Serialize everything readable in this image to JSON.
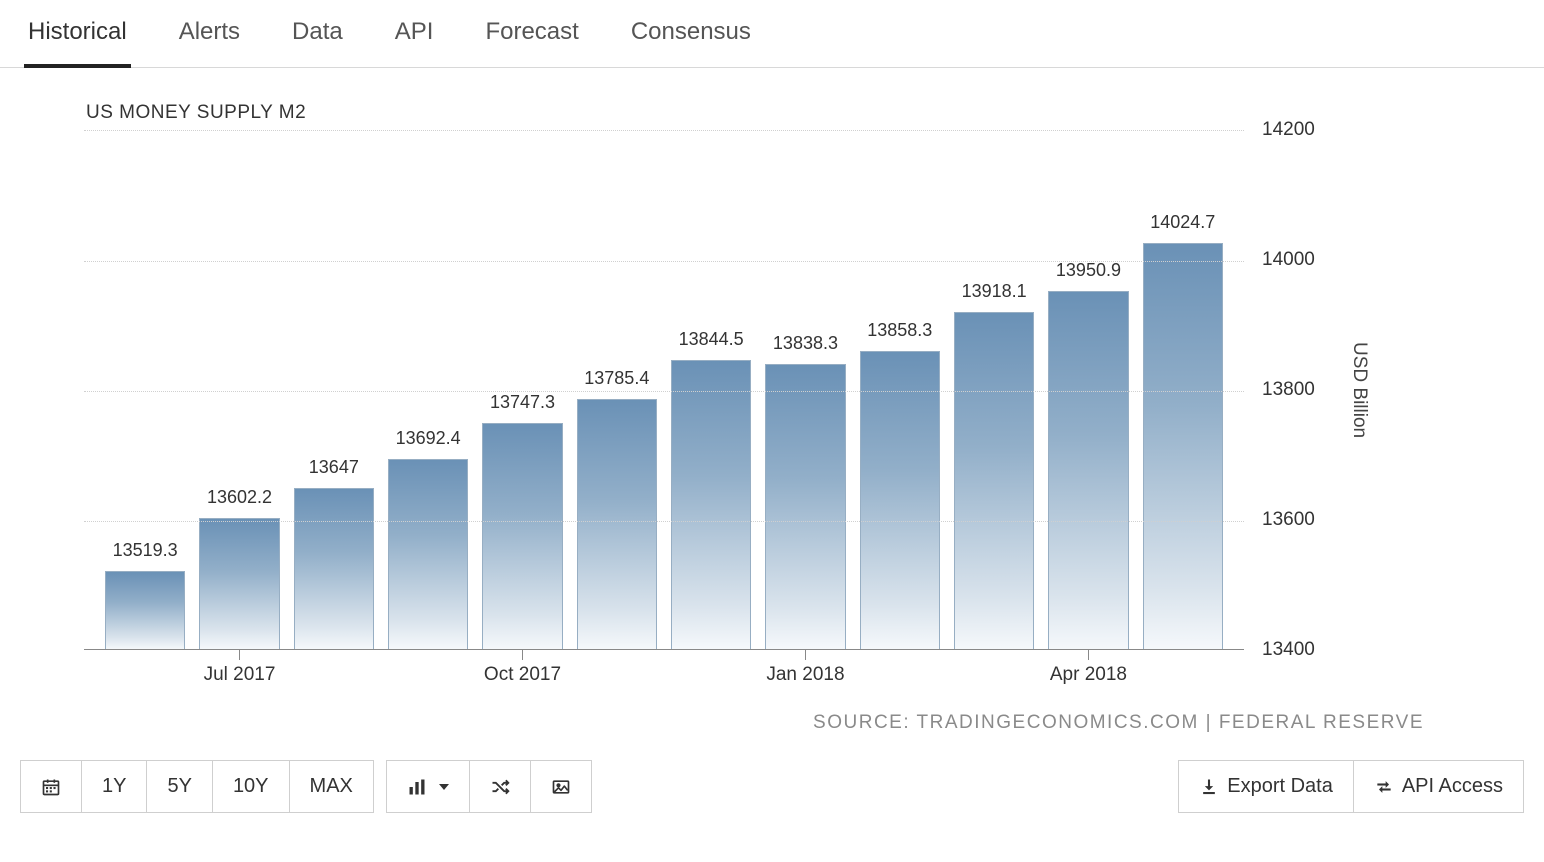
{
  "tabs": [
    {
      "label": "Historical",
      "active": true
    },
    {
      "label": "Alerts",
      "active": false
    },
    {
      "label": "Data",
      "active": false
    },
    {
      "label": "API",
      "active": false
    },
    {
      "label": "Forecast",
      "active": false
    },
    {
      "label": "Consensus",
      "active": false
    }
  ],
  "chart": {
    "title": "US MONEY SUPPLY M2",
    "type": "bar",
    "y_axis_title": "USD Billion",
    "ylim": [
      13400,
      14200
    ],
    "ytick_step": 200,
    "y_ticks": [
      13400,
      13600,
      13800,
      14000,
      14200
    ],
    "grid_color": "#d0d0d0",
    "background_color": "#ffffff",
    "bar_gradient_top": "#6a91b6",
    "bar_gradient_bottom": "#f5f8fb",
    "bar_border_color": "#97aec3",
    "label_fontsize": 18,
    "tick_fontsize": 19,
    "title_fontsize": 19,
    "bars": [
      {
        "value": 13519.3,
        "label": "13519.3",
        "xlabel": ""
      },
      {
        "value": 13602.2,
        "label": "13602.2",
        "xlabel": "Jul 2017"
      },
      {
        "value": 13647,
        "label": "13647",
        "xlabel": ""
      },
      {
        "value": 13692.4,
        "label": "13692.4",
        "xlabel": ""
      },
      {
        "value": 13747.3,
        "label": "13747.3",
        "xlabel": "Oct 2017"
      },
      {
        "value": 13785.4,
        "label": "13785.4",
        "xlabel": ""
      },
      {
        "value": 13844.5,
        "label": "13844.5",
        "xlabel": ""
      },
      {
        "value": 13838.3,
        "label": "13838.3",
        "xlabel": "Jan 2018"
      },
      {
        "value": 13858.3,
        "label": "13858.3",
        "xlabel": ""
      },
      {
        "value": 13918.1,
        "label": "13918.1",
        "xlabel": ""
      },
      {
        "value": 13950.9,
        "label": "13950.9",
        "xlabel": "Apr 2018"
      },
      {
        "value": 14024.7,
        "label": "14024.7",
        "xlabel": ""
      }
    ]
  },
  "source": "SOURCE: TRADINGECONOMICS.COM | FEDERAL RESERVE",
  "toolbar": {
    "ranges": [
      "1Y",
      "5Y",
      "10Y",
      "MAX"
    ],
    "export_label": "Export Data",
    "api_label": "API Access"
  }
}
